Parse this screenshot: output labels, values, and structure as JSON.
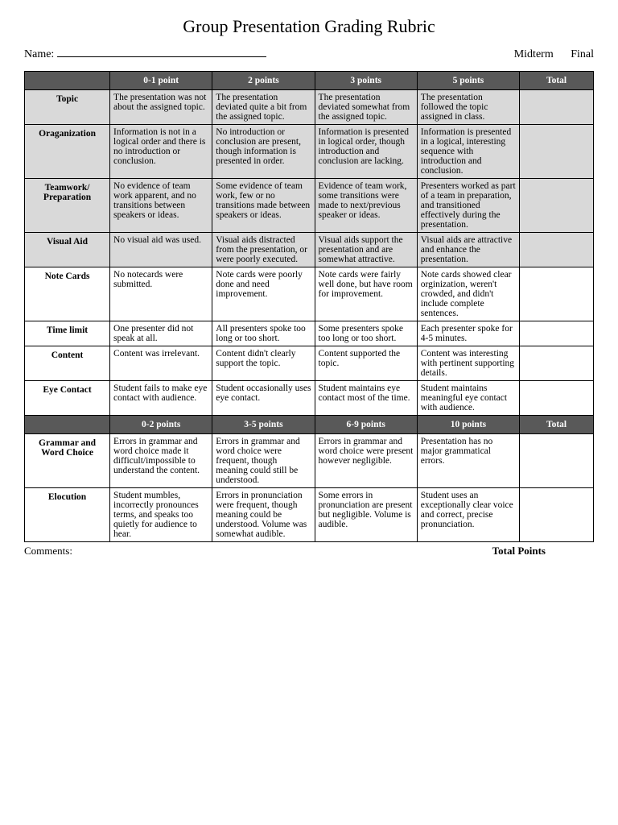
{
  "title": "Group Presentation Grading Rubric",
  "name_label": "Name:",
  "term1": "Midterm",
  "term2": "Final",
  "headers1": [
    "",
    "0-1 point",
    "2 points",
    "3 points",
    "5 points",
    "Total"
  ],
  "headers2": [
    "",
    "0-2 points",
    "3-5 points",
    "6-9 points",
    "10 points",
    "Total"
  ],
  "section1": [
    {
      "criteria": "Topic",
      "shaded": true,
      "cells": [
        "The presentation was not about the assigned topic.",
        "The presentation deviated quite a bit from the assigned topic.",
        "The presentation deviated somewhat from the assigned topic.",
        "The presentation followed the topic assigned in class."
      ]
    },
    {
      "criteria": "Oraganization",
      "shaded": true,
      "cells": [
        "Information is not in a logical order and there is no introduction or conclusion.",
        "No introduction or conclusion are present, though information is presented in order.",
        "Information is presented in logical order, though introduction and conclusion are lacking.",
        "Information is presented in a logical, interesting sequence with introduction and conclusion."
      ]
    },
    {
      "criteria": "Teamwork/ Preparation",
      "shaded": true,
      "cells": [
        "No evidence of team work apparent, and no transitions between speakers or ideas.",
        "Some evidence of team work, few or no transitions made between speakers or ideas.",
        "Evidence of team work, some transitions were made to next/previous speaker or ideas.",
        "Presenters worked as part of a team in preparation, and transitioned effectively during the presentation."
      ]
    },
    {
      "criteria": "Visual Aid",
      "shaded": true,
      "cells": [
        "No visual aid was used.",
        "Visual aids distracted from the presentation, or were poorly executed.",
        "Visual aids support the presentation and are somewhat attractive.",
        "Visual aids are attractive and enhance the presentation."
      ]
    },
    {
      "criteria": "Note Cards",
      "shaded": false,
      "cells": [
        "No notecards were submitted.",
        "Note cards were poorly done and need improvement.",
        "Note cards were fairly well done, but have room for improvement.",
        "Note cards showed clear orginization, weren't crowded, and didn't include complete sentences."
      ]
    },
    {
      "criteria": "Time limit",
      "shaded": false,
      "cells": [
        "One presenter did not speak at all.",
        "All presenters spoke too long or too short.",
        "Some presenters spoke too long or too short.",
        "Each presenter spoke for 4-5 minutes."
      ]
    },
    {
      "criteria": "Content",
      "shaded": false,
      "cells": [
        "Content was irrelevant.",
        "Content didn't clearly support the topic.",
        "Content supported the topic.",
        "Content was interesting with pertinent supporting details."
      ]
    },
    {
      "criteria": "Eye Contact",
      "shaded": false,
      "cells": [
        "Student fails to make eye contact with audience.",
        "Student occasionally uses eye contact.",
        "Student maintains eye contact most of the time.",
        "Student maintains meaningful eye contact with audience."
      ]
    }
  ],
  "section2": [
    {
      "criteria": "Grammar and Word Choice",
      "shaded": false,
      "cells": [
        "Errors in grammar and word choice made it difficult/impossible to understand the content.",
        "Errors in grammar and word choice were frequent, though meaning could still be understood.",
        "Errors in grammar and word choice were present however negligible.",
        "Presentation has no major grammatical errors."
      ]
    },
    {
      "criteria": "Elocution",
      "shaded": false,
      "cells": [
        "Student mumbles, incorrectly pronounces terms, and speaks too quietly for audience to hear.",
        "Errors in pronunciation were frequent, though meaning could be understood. Volume was somewhat audible.",
        "Some errors in pronunciation are present but negligible. Volume is audible.",
        "Student uses an exceptionally clear voice and correct, precise pronunciation."
      ]
    }
  ],
  "comments_label": "Comments:",
  "total_points_label": "Total Points"
}
